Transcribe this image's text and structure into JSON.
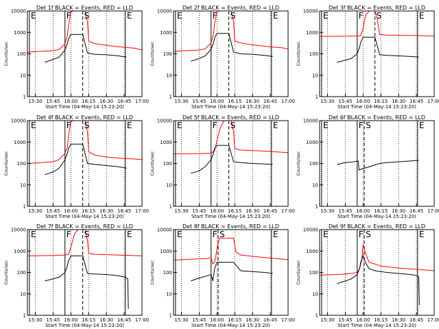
{
  "chart_data": [
    {
      "type": "line",
      "title": "Det 1f BLACK = Events, RED = LLD",
      "xlabel": "Start Time (04-May-14 15:23:20)",
      "ylabel": "Counts/sec",
      "yscale": "log",
      "ylim": [
        1,
        10000
      ],
      "xlim": [
        "15:23:20",
        "17:00:00"
      ],
      "x_ticks": [
        "15:30",
        "15:45",
        "16:00",
        "16:15",
        "16:30",
        "16:45",
        "17:00"
      ],
      "y_ticks": [
        "1",
        "10",
        "100",
        "1000",
        "10000"
      ],
      "markers": [
        {
          "label": "E",
          "time": "15:25:00"
        },
        {
          "label": "F",
          "time": "15:55:00"
        },
        {
          "label": "S",
          "time": "16:10:00"
        },
        {
          "label": "E",
          "time": "16:46:00"
        }
      ],
      "series": [
        {
          "color": "#ff0000",
          "times": [
            "15:23:30",
            "15:35",
            "15:45",
            "15:50",
            "15:52",
            "15:55",
            "15:57",
            "15:58",
            "16:00",
            "16:02",
            "16:06",
            "16:09",
            "16:12",
            "16:14",
            "16:15",
            "16:20",
            "16:30",
            "16:45",
            "16:55",
            "17:00"
          ],
          "values": [
            120,
            130,
            140,
            160,
            200,
            300,
            700,
            2000,
            9000,
            11000,
            11000,
            11000,
            11000,
            3000,
            400,
            300,
            250,
            200,
            180,
            150
          ]
        },
        {
          "color": "#000000",
          "times": [
            "15:38",
            "15:45",
            "15:50",
            "15:55",
            "15:57",
            "15:58",
            "16:00",
            "16:10",
            "16:14",
            "16:20",
            "16:30",
            "16:40",
            "16:47"
          ],
          "values": [
            40,
            55,
            70,
            150,
            300,
            500,
            800,
            800,
            110,
            95,
            90,
            80,
            70
          ]
        }
      ]
    },
    {
      "type": "line",
      "title": "Det 2f BLACK = Events, RED = LLD",
      "xlabel": "Start Time (04-May-14 15:23:20)",
      "ylabel": "Counts/sec",
      "yscale": "log",
      "ylim": [
        1,
        10000
      ],
      "xlim": [
        "15:23:20",
        "17:00:00"
      ],
      "x_ticks": [
        "15:30",
        "15:45",
        "16:00",
        "16:15",
        "16:30",
        "16:45",
        "17:00"
      ],
      "y_ticks": [
        "1",
        "10",
        "100",
        "1000",
        "10000"
      ],
      "markers": [
        {
          "label": "E",
          "time": "15:25:00"
        },
        {
          "label": "F",
          "time": "15:55:00"
        },
        {
          "label": "S",
          "time": "16:10:00"
        },
        {
          "label": "E",
          "time": "16:46:00"
        }
      ],
      "series": [
        {
          "color": "#ff0000",
          "times": [
            "15:23:30",
            "15:35",
            "15:45",
            "15:50",
            "15:52",
            "15:55",
            "15:57",
            "15:58",
            "16:00",
            "16:02",
            "16:06",
            "16:09",
            "16:12",
            "16:14",
            "16:15",
            "16:20",
            "16:30",
            "16:45",
            "16:55",
            "17:00"
          ],
          "values": [
            130,
            140,
            150,
            170,
            220,
            320,
            800,
            2500,
            9500,
            11000,
            11000,
            11000,
            11000,
            3000,
            400,
            320,
            260,
            210,
            190,
            170
          ]
        },
        {
          "color": "#000000",
          "times": [
            "15:38",
            "15:45",
            "15:50",
            "15:55",
            "15:57",
            "15:58",
            "16:00",
            "16:10",
            "16:14",
            "16:20",
            "16:30",
            "16:40",
            "16:47"
          ],
          "values": [
            45,
            60,
            80,
            160,
            320,
            550,
            900,
            900,
            120,
            100,
            95,
            85,
            75
          ]
        }
      ]
    },
    {
      "type": "line",
      "title": "Det 3f BLACK = Events, RED = LLD",
      "xlabel": "Start Time (04-May-14 15:23:20)",
      "ylabel": "Counts/sec",
      "yscale": "log",
      "ylim": [
        1,
        10000
      ],
      "xlim": [
        "15:23:20",
        "17:00:00"
      ],
      "x_ticks": [
        "15:30",
        "15:45",
        "16:00",
        "16:15",
        "16:30",
        "16:45",
        "17:00"
      ],
      "y_ticks": [
        "1",
        "10",
        "100",
        "1000",
        "10000"
      ],
      "markers": [
        {
          "label": "E",
          "time": "15:25:00"
        },
        {
          "label": "F",
          "time": "15:55:00"
        },
        {
          "label": "S",
          "time": "16:10:00"
        },
        {
          "label": "E",
          "time": "16:46:00"
        }
      ],
      "series": [
        {
          "color": "#ff0000",
          "times": [
            "15:23:30",
            "15:40",
            "15:55",
            "15:58",
            "16:00",
            "16:02",
            "16:05",
            "16:08",
            "16:10",
            "16:12",
            "16:14",
            "16:20",
            "16:40",
            "17:00"
          ],
          "values": [
            650,
            660,
            680,
            700,
            1500,
            6000,
            11000,
            11000,
            11000,
            4000,
            800,
            750,
            720,
            680
          ]
        },
        {
          "color": "#000000",
          "times": [
            "15:38",
            "15:45",
            "15:50",
            "15:55",
            "15:57",
            "15:58",
            "16:00",
            "16:10",
            "16:14",
            "16:20",
            "16:30",
            "16:40",
            "16:47"
          ],
          "values": [
            40,
            50,
            60,
            100,
            200,
            350,
            600,
            600,
            90,
            85,
            80,
            75,
            70
          ]
        }
      ]
    },
    {
      "type": "line",
      "title": "Det 4f BLACK = Events, RED = LLD",
      "xlabel": "Start Time (04-May-14 15:23:20)",
      "ylabel": "Counts/sec",
      "yscale": "log",
      "ylim": [
        1,
        10000
      ],
      "xlim": [
        "15:23:20",
        "17:00:00"
      ],
      "x_ticks": [
        "15:30",
        "15:45",
        "16:00",
        "16:15",
        "16:30",
        "16:45",
        "17:00"
      ],
      "y_ticks": [
        "1",
        "10",
        "100",
        "1000",
        "10000"
      ],
      "markers": [
        {
          "label": "E",
          "time": "15:25:00"
        },
        {
          "label": "F",
          "time": "15:55:00"
        },
        {
          "label": "S",
          "time": "16:10:00"
        },
        {
          "label": "E",
          "time": "16:46:00"
        }
      ],
      "series": [
        {
          "color": "#ff0000",
          "times": [
            "15:23:30",
            "15:35",
            "15:45",
            "15:50",
            "15:52",
            "15:55",
            "15:57",
            "15:58",
            "16:00",
            "16:02",
            "16:06",
            "16:09",
            "16:12",
            "16:14",
            "16:15",
            "16:20",
            "16:30",
            "16:45",
            "16:55",
            "17:00"
          ],
          "values": [
            100,
            110,
            120,
            150,
            200,
            300,
            600,
            2000,
            9000,
            11000,
            11000,
            11000,
            11000,
            3000,
            350,
            250,
            200,
            170,
            160,
            150
          ]
        },
        {
          "color": "#000000",
          "times": [
            "15:38",
            "15:45",
            "15:50",
            "15:55",
            "15:57",
            "15:58",
            "16:00",
            "16:10",
            "16:14",
            "16:20",
            "16:30",
            "16:40",
            "16:47"
          ],
          "values": [
            30,
            40,
            60,
            150,
            300,
            500,
            800,
            800,
            100,
            90,
            80,
            70,
            60
          ]
        }
      ]
    },
    {
      "type": "line",
      "title": "Det 5f BLACK = Events, RED = LLD",
      "xlabel": "Start Time (04-May-14 15:23:20)",
      "ylabel": "Counts/sec",
      "yscale": "log",
      "ylim": [
        1,
        10000
      ],
      "xlim": [
        "15:23:20",
        "17:00:00"
      ],
      "x_ticks": [
        "15:30",
        "15:45",
        "16:00",
        "16:15",
        "16:30",
        "16:45",
        "17:00"
      ],
      "y_ticks": [
        "1",
        "10",
        "100",
        "1000",
        "10000"
      ],
      "markers": [
        {
          "label": "E",
          "time": "15:25:00"
        },
        {
          "label": "F",
          "time": "15:55:00"
        },
        {
          "label": "S",
          "time": "16:10:00"
        },
        {
          "label": "E",
          "time": "16:46:00"
        }
      ],
      "series": [
        {
          "color": "#ff0000",
          "times": [
            "15:23:30",
            "15:45",
            "15:55",
            "15:58",
            "16:00",
            "16:03",
            "16:06",
            "16:09",
            "16:12",
            "16:14",
            "16:15",
            "16:20",
            "16:40",
            "17:00"
          ],
          "values": [
            280,
            290,
            300,
            400,
            1200,
            5000,
            11000,
            11000,
            11000,
            3000,
            500,
            420,
            380,
            320
          ]
        },
        {
          "color": "#000000",
          "times": [
            "15:38",
            "15:45",
            "15:50",
            "15:55",
            "15:57",
            "15:58",
            "16:00",
            "16:10",
            "16:14",
            "16:20",
            "16:30",
            "16:40",
            "16:47"
          ],
          "values": [
            35,
            45,
            70,
            150,
            300,
            500,
            700,
            700,
            120,
            110,
            100,
            95,
            90
          ]
        }
      ]
    },
    {
      "type": "line",
      "title": "Det 6f BLACK = Events, RED = LLD",
      "xlabel": "Start Time (04-May-14 15:23:20)",
      "ylabel": "Counts/sec",
      "yscale": "log",
      "ylim": [
        1,
        10000
      ],
      "xlim": [
        "15:23:20",
        "17:00:00"
      ],
      "x_ticks": [
        "15:30",
        "15:45",
        "16:00",
        "16:15",
        "16:30",
        "16:45",
        "17:00"
      ],
      "y_ticks": [
        "1",
        "10",
        "100",
        "1000",
        "10000"
      ],
      "markers": [
        {
          "label": "E",
          "time": "15:25:00"
        },
        {
          "label": "F",
          "time": "15:55:00"
        },
        {
          "label": "S",
          "time": "16:01:00"
        },
        {
          "label": "E",
          "time": "16:46:00"
        }
      ],
      "series": [
        {
          "color": "#000000",
          "times": [
            "15:38",
            "15:45",
            "15:52",
            "15:56",
            "15:56:30",
            "16:14",
            "16:20",
            "16:30",
            "16:40",
            "16:47"
          ],
          "values": [
            90,
            110,
            120,
            130,
            50,
            100,
            110,
            120,
            130,
            140
          ]
        }
      ]
    },
    {
      "type": "line",
      "title": "Det 7f BLACK = Events, RED = LLD",
      "xlabel": "Start Time (04-May-14 15:23:20)",
      "ylabel": "Counts/sec",
      "yscale": "log",
      "ylim": [
        1,
        10000
      ],
      "xlim": [
        "15:23:20",
        "17:00:00"
      ],
      "x_ticks": [
        "15:30",
        "15:45",
        "16:00",
        "16:15",
        "16:30",
        "16:45",
        "17:00"
      ],
      "y_ticks": [
        "1",
        "10",
        "100",
        "1000",
        "10000"
      ],
      "markers": [
        {
          "label": "E",
          "time": "15:25:00"
        },
        {
          "label": "F",
          "time": "15:55:00"
        },
        {
          "label": "S",
          "time": "16:10:00"
        },
        {
          "label": "E",
          "time": "16:46:00"
        }
      ],
      "series": [
        {
          "color": "#ff0000",
          "times": [
            "15:23:30",
            "15:45",
            "15:55",
            "15:58",
            "16:00",
            "16:03",
            "16:06",
            "16:09",
            "16:12",
            "16:14",
            "16:15",
            "16:20",
            "16:40",
            "17:00"
          ],
          "values": [
            600,
            620,
            650,
            700,
            1500,
            6000,
            11000,
            11000,
            11000,
            3000,
            800,
            700,
            650,
            600
          ]
        },
        {
          "color": "#000000",
          "times": [
            "15:38",
            "15:45",
            "15:50",
            "15:55",
            "15:57",
            "15:58",
            "16:00",
            "16:10",
            "16:14",
            "16:20",
            "16:30",
            "16:40",
            "16:46",
            "16:48",
            "16:48:30"
          ],
          "values": [
            40,
            50,
            60,
            100,
            200,
            350,
            600,
            600,
            90,
            85,
            80,
            70,
            60,
            50,
            2
          ]
        }
      ]
    },
    {
      "type": "line",
      "title": "Det 8f BLACK = Events, RED = LLD",
      "xlabel": "Start Time (04-May-14 15:23:20)",
      "ylabel": "Counts/sec",
      "yscale": "log",
      "ylim": [
        1,
        10000
      ],
      "xlim": [
        "15:23:20",
        "17:00:00"
      ],
      "x_ticks": [
        "15:30",
        "15:45",
        "16:00",
        "16:15",
        "16:30",
        "16:45",
        "17:00"
      ],
      "y_ticks": [
        "1",
        "10",
        "100",
        "1000",
        "10000"
      ],
      "markers": [
        {
          "label": "E",
          "time": "15:25:00"
        },
        {
          "label": "F",
          "time": "15:55:00"
        },
        {
          "label": "S",
          "time": "16:01:00"
        },
        {
          "label": "E",
          "time": "16:46:00"
        }
      ],
      "series": [
        {
          "color": "#ff0000",
          "times": [
            "15:23:30",
            "15:40",
            "15:52",
            "15:55",
            "15:56:30",
            "15:58",
            "16:00",
            "16:02",
            "16:14",
            "16:16",
            "16:20",
            "16:40",
            "17:00"
          ],
          "values": [
            380,
            420,
            450,
            500,
            250,
            300,
            1200,
            4000,
            4000,
            900,
            650,
            500,
            400
          ]
        },
        {
          "color": "#000000",
          "times": [
            "15:38",
            "15:45",
            "15:50",
            "15:55",
            "15:56:30",
            "15:58",
            "16:00",
            "16:14",
            "16:20",
            "16:30",
            "16:40",
            "16:47"
          ],
          "values": [
            40,
            55,
            65,
            80,
            40,
            150,
            300,
            300,
            120,
            110,
            100,
            90
          ]
        }
      ]
    },
    {
      "type": "line",
      "title": "Det 9f BLACK = Events, RED = LLD",
      "xlabel": "Start Time (04-May-14 15:23:20)",
      "ylabel": "Counts/sec",
      "yscale": "log",
      "ylim": [
        1,
        10000
      ],
      "xlim": [
        "15:23:20",
        "17:00:00"
      ],
      "x_ticks": [
        "15:30",
        "15:45",
        "16:00",
        "16:15",
        "16:30",
        "16:45",
        "17:00"
      ],
      "y_ticks": [
        "1",
        "10",
        "100",
        "1000",
        "10000"
      ],
      "markers": [
        {
          "label": "E",
          "time": "15:25:00"
        },
        {
          "label": "F",
          "time": "15:55:00"
        },
        {
          "label": "S",
          "time": "16:01:00"
        },
        {
          "label": "E",
          "time": "16:46:00"
        }
      ],
      "series": [
        {
          "color": "#ff0000",
          "times": [
            "15:23:30",
            "15:40",
            "15:50",
            "15:55",
            "15:57",
            "15:59",
            "16:00",
            "16:02",
            "16:05",
            "16:10",
            "16:15",
            "16:30",
            "16:45",
            "17:00"
          ],
          "values": [
            75,
            80,
            90,
            100,
            150,
            400,
            2000,
            800,
            300,
            250,
            200,
            160,
            140,
            120
          ]
        },
        {
          "color": "#000000",
          "times": [
            "15:38",
            "15:45",
            "15:50",
            "15:55",
            "15:57",
            "15:58",
            "16:00",
            "16:02",
            "16:05",
            "16:10",
            "16:20",
            "16:30",
            "16:40",
            "16:46",
            "16:47",
            "16:47:30"
          ],
          "values": [
            30,
            40,
            50,
            80,
            150,
            300,
            600,
            300,
            150,
            120,
            100,
            90,
            80,
            70,
            60,
            3
          ]
        }
      ]
    }
  ]
}
